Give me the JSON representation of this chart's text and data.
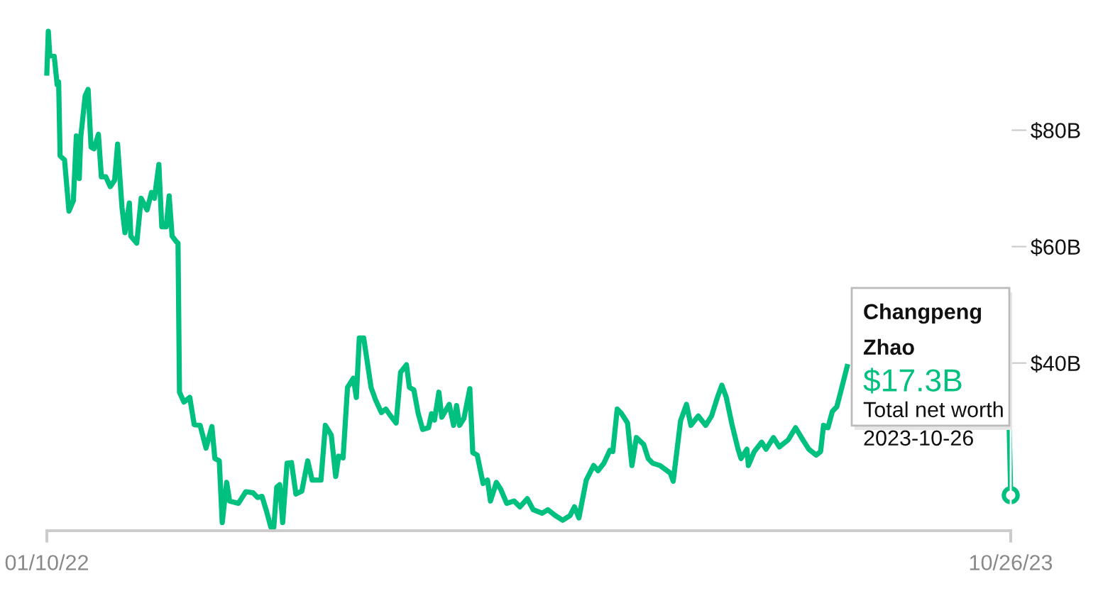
{
  "chart_data": {
    "type": "line",
    "x": [
      "2022-01-10",
      "2022-01-11",
      "2022-01-12",
      "2022-01-15",
      "2022-01-17",
      "2022-01-18",
      "2022-01-19",
      "2022-01-22",
      "2022-01-25",
      "2022-01-28",
      "2022-01-30",
      "2022-02-01",
      "2022-02-02",
      "2022-02-05",
      "2022-02-07",
      "2022-02-09",
      "2022-02-11",
      "2022-02-14",
      "2022-02-16",
      "2022-02-19",
      "2022-02-22",
      "2022-02-25",
      "2022-02-27",
      "2022-03-02",
      "2022-03-04",
      "2022-03-07",
      "2022-03-08",
      "2022-03-12",
      "2022-03-15",
      "2022-03-19",
      "2022-03-22",
      "2022-03-24",
      "2022-03-27",
      "2022-03-29",
      "2022-04-01",
      "2022-04-03",
      "2022-04-05",
      "2022-04-08",
      "2022-04-09",
      "2022-04-10",
      "2022-04-13",
      "2022-04-17",
      "2022-04-18",
      "2022-04-20",
      "2022-04-24",
      "2022-04-28",
      "2022-05-02",
      "2022-05-04",
      "2022-05-07",
      "2022-05-09",
      "2022-05-12",
      "2022-05-14",
      "2022-05-20",
      "2022-05-25",
      "2022-05-30",
      "2022-06-02",
      "2022-06-05",
      "2022-06-08",
      "2022-06-11",
      "2022-06-13",
      "2022-06-15",
      "2022-06-17",
      "2022-06-19",
      "2022-06-22",
      "2022-06-25",
      "2022-06-28",
      "2022-07-02",
      "2022-07-06",
      "2022-07-09",
      "2022-07-15",
      "2022-07-18",
      "2022-07-22",
      "2022-07-25",
      "2022-07-27",
      "2022-07-30",
      "2022-08-02",
      "2022-08-06",
      "2022-08-08",
      "2022-08-10",
      "2022-08-13",
      "2022-08-18",
      "2022-08-21",
      "2022-08-25",
      "2022-08-28",
      "2022-08-31",
      "2022-09-04",
      "2022-09-07",
      "2022-09-11",
      "2022-09-13",
      "2022-09-16",
      "2022-09-19",
      "2022-09-22",
      "2022-09-26",
      "2022-09-28",
      "2022-09-30",
      "2022-10-03",
      "2022-10-05",
      "2022-10-10",
      "2022-10-13",
      "2022-10-15",
      "2022-10-17",
      "2022-10-20",
      "2022-10-24",
      "2022-10-26",
      "2022-10-29",
      "2022-11-02",
      "2022-11-05",
      "2022-11-07",
      "2022-11-11",
      "2022-11-14",
      "2022-11-18",
      "2022-11-23",
      "2022-11-27",
      "2022-12-02",
      "2022-12-06",
      "2022-12-12",
      "2022-12-16",
      "2022-12-21",
      "2022-12-26",
      "2022-12-31",
      "2023-01-03",
      "2023-01-06",
      "2023-01-11",
      "2023-01-16",
      "2023-01-19",
      "2023-01-23",
      "2023-01-27",
      "2023-01-29",
      "2023-02-01",
      "2023-02-04",
      "2023-02-08",
      "2023-02-11",
      "2023-02-14",
      "2023-02-19",
      "2023-02-22",
      "2023-02-25",
      "2023-03-02",
      "2023-03-09",
      "2023-03-11",
      "2023-03-16",
      "2023-03-20",
      "2023-03-23",
      "2023-03-28",
      "2023-04-02",
      "2023-04-06",
      "2023-04-10",
      "2023-04-13",
      "2023-04-16",
      "2023-04-20",
      "2023-04-24",
      "2023-04-26",
      "2023-04-30",
      "2023-05-01",
      "2023-05-05",
      "2023-05-10",
      "2023-05-13",
      "2023-05-18",
      "2023-05-22",
      "2023-05-28",
      "2023-06-02",
      "2023-06-06",
      "2023-06-11",
      "2023-06-16",
      "2023-06-19",
      "2023-06-21",
      "2023-06-24",
      "2023-06-27",
      "2023-06-30",
      "2023-07-03",
      "2023-07-07",
      "2023-08-15",
      "2023-10-25",
      "2023-10-26"
    ],
    "series": [
      {
        "color": "#00c07f",
        "values": [
          89.8,
          97.0,
          92.8,
          92.7,
          87.8,
          88.3,
          75.6,
          74.9,
          66.1,
          67.9,
          79.0,
          71.7,
          78.8,
          85.9,
          87.0,
          77.1,
          76.8,
          79.3,
          72.0,
          72.0,
          70.3,
          71.4,
          77.6,
          66.7,
          62.4,
          67.5,
          61.8,
          60.6,
          68.3,
          66.3,
          69.3,
          68.3,
          74.1,
          63.4,
          63.4,
          68.7,
          61.8,
          60.8,
          60.6,
          35.0,
          33.3,
          34.1,
          32.5,
          29.4,
          29.3,
          25.4,
          29.1,
          23.6,
          23.2,
          12.6,
          19.5,
          16.3,
          15.9,
          17.9,
          17.7,
          16.9,
          17.1,
          14.6,
          11.8,
          11.8,
          18.7,
          19.1,
          12.6,
          22.8,
          22.9,
          17.5,
          18.0,
          23.2,
          19.9,
          19.9,
          29.3,
          27.6,
          20.5,
          24.0,
          23.7,
          35.8,
          37.4,
          34.1,
          44.3,
          44.3,
          35.8,
          33.7,
          31.5,
          32.1,
          31.0,
          29.7,
          38.4,
          39.7,
          35.8,
          35.4,
          31.3,
          28.6,
          28.9,
          31.3,
          30.2,
          35.0,
          30.7,
          32.9,
          29.3,
          32.7,
          29.3,
          30.5,
          35.6,
          24.6,
          24.2,
          19.3,
          19.9,
          16.3,
          19.5,
          18.3,
          15.9,
          16.3,
          15.3,
          16.7,
          14.8,
          14.2,
          14.8,
          13.8,
          13.0,
          13.8,
          15.3,
          13.4,
          19.9,
          22.4,
          21.5,
          22.8,
          25.0,
          24.8,
          32.1,
          31.3,
          29.7,
          22.4,
          27.2,
          26.0,
          23.6,
          22.8,
          22.4,
          21.1,
          19.7,
          30.1,
          32.9,
          29.3,
          30.9,
          29.3,
          30.9,
          34.1,
          36.2,
          34.1,
          29.3,
          25.2,
          23.6,
          25.2,
          22.4,
          24.8,
          26.4,
          25.2,
          27.2,
          25.6,
          26.8,
          28.9,
          27.2,
          25.2,
          24.2,
          24.8,
          29.3,
          28.9,
          31.7,
          32.5,
          35.4,
          39.4,
          null,
          28.5,
          17.3
        ]
      }
    ],
    "xlim": [
      "2022-01-10",
      "2023-10-26"
    ],
    "xticks": [
      {
        "value": "2022-01-10",
        "label": "01/10/22"
      },
      {
        "value": "2023-10-26",
        "label": "10/26/23"
      }
    ],
    "ylim": [
      11.2,
      97.0
    ],
    "yticks": [
      {
        "value": 40,
        "label": "$40B"
      },
      {
        "value": 60,
        "label": "$60B"
      },
      {
        "value": 80,
        "label": "$80B"
      }
    ],
    "grid": false,
    "legend": false,
    "line_style": "solid",
    "annotations": [
      {
        "text": "Changpeng\nZhao\n$17.3B\nTotal net worth\n2023-10-26",
        "x": "2023-10-26",
        "y": 17.3
      }
    ]
  }
}
